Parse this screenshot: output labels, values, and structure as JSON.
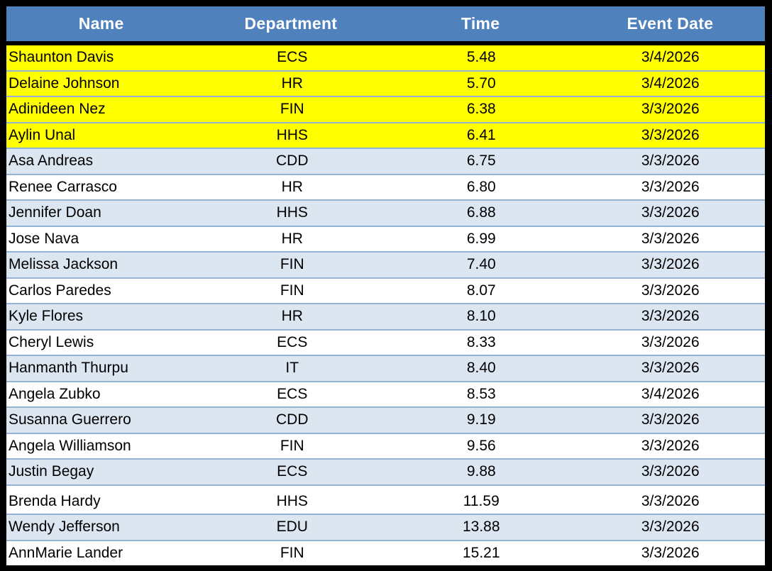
{
  "table": {
    "headers": {
      "name": "Name",
      "department": "Department",
      "time": "Time",
      "event_date": "Event Date"
    },
    "rows": [
      {
        "name": "Shaunton Davis",
        "department": "ECS",
        "time": "5.48",
        "event_date": "3/4/2026",
        "highlighted": true,
        "gap_before": false
      },
      {
        "name": "Delaine Johnson",
        "department": "HR",
        "time": "5.70",
        "event_date": "3/4/2026",
        "highlighted": true,
        "gap_before": false
      },
      {
        "name": "Adinideen Nez",
        "department": "FIN",
        "time": "6.38",
        "event_date": "3/3/2026",
        "highlighted": true,
        "gap_before": false
      },
      {
        "name": "Aylin Unal",
        "department": "HHS",
        "time": "6.41",
        "event_date": "3/3/2026",
        "highlighted": true,
        "gap_before": false
      },
      {
        "name": "Asa Andreas",
        "department": "CDD",
        "time": "6.75",
        "event_date": "3/3/2026",
        "highlighted": false,
        "gap_before": false
      },
      {
        "name": "Renee Carrasco",
        "department": "HR",
        "time": "6.80",
        "event_date": "3/3/2026",
        "highlighted": false,
        "gap_before": false
      },
      {
        "name": "Jennifer Doan",
        "department": "HHS",
        "time": "6.88",
        "event_date": "3/3/2026",
        "highlighted": false,
        "gap_before": false
      },
      {
        "name": "Jose Nava",
        "department": "HR",
        "time": "6.99",
        "event_date": "3/3/2026",
        "highlighted": false,
        "gap_before": false
      },
      {
        "name": "Melissa Jackson",
        "department": "FIN",
        "time": "7.40",
        "event_date": "3/3/2026",
        "highlighted": false,
        "gap_before": false
      },
      {
        "name": "Carlos Paredes",
        "department": "FIN",
        "time": "8.07",
        "event_date": "3/3/2026",
        "highlighted": false,
        "gap_before": false
      },
      {
        "name": "Kyle Flores",
        "department": "HR",
        "time": "8.10",
        "event_date": "3/3/2026",
        "highlighted": false,
        "gap_before": false
      },
      {
        "name": "Cheryl Lewis",
        "department": "ECS",
        "time": "8.33",
        "event_date": "3/3/2026",
        "highlighted": false,
        "gap_before": false
      },
      {
        "name": "Hanmanth Thurpu",
        "department": "IT",
        "time": "8.40",
        "event_date": "3/3/2026",
        "highlighted": false,
        "gap_before": false
      },
      {
        "name": "Angela Zubko",
        "department": "ECS",
        "time": "8.53",
        "event_date": "3/4/2026",
        "highlighted": false,
        "gap_before": false
      },
      {
        "name": "Susanna Guerrero",
        "department": "CDD",
        "time": "9.19",
        "event_date": "3/3/2026",
        "highlighted": false,
        "gap_before": false
      },
      {
        "name": "Angela Williamson",
        "department": "FIN",
        "time": "9.56",
        "event_date": "3/3/2026",
        "highlighted": false,
        "gap_before": false
      },
      {
        "name": "Justin Begay",
        "department": "ECS",
        "time": "9.88",
        "event_date": "3/3/2026",
        "highlighted": false,
        "gap_before": false
      },
      {
        "name": "Brenda Hardy",
        "department": "HHS",
        "time": "11.59",
        "event_date": "3/3/2026",
        "highlighted": false,
        "gap_before": true
      },
      {
        "name": "Wendy Jefferson",
        "department": "EDU",
        "time": "13.88",
        "event_date": "3/3/2026",
        "highlighted": false,
        "gap_before": false
      },
      {
        "name": "AnnMarie Lander",
        "department": "FIN",
        "time": "15.21",
        "event_date": "3/3/2026",
        "highlighted": false,
        "gap_before": false
      }
    ],
    "colors": {
      "header_bg": "#4F81BD",
      "header_text": "#FFFFFF",
      "highlight_bg": "#FFFF00",
      "band_bg": "#DCE6F1",
      "row_border": "#95B3D7",
      "frame": "#000000",
      "body_text": "#000000"
    }
  }
}
